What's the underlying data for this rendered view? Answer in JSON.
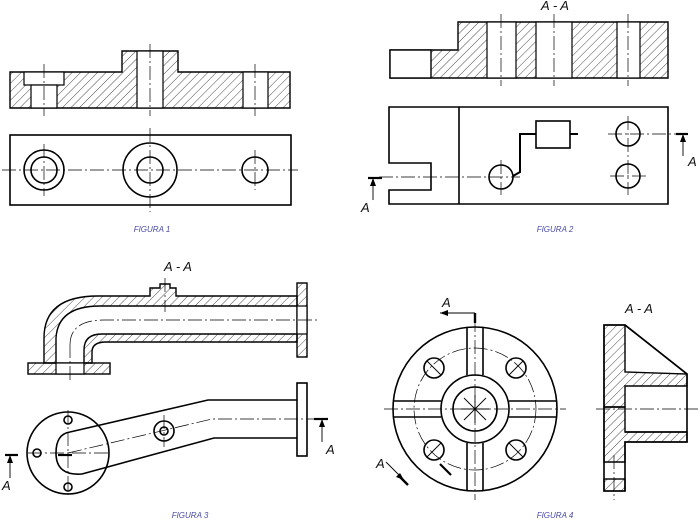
{
  "figures": [
    {
      "caption": "FIGURA 1",
      "section_label": ""
    },
    {
      "caption": "FIGURA 2",
      "section_label": "A - A",
      "cut_label": "A"
    },
    {
      "caption": "FIGURA 3",
      "section_label": "A - A",
      "cut_label": "A"
    },
    {
      "caption": "FIGURA 4",
      "section_label": "A - A",
      "cut_label": "A"
    }
  ]
}
